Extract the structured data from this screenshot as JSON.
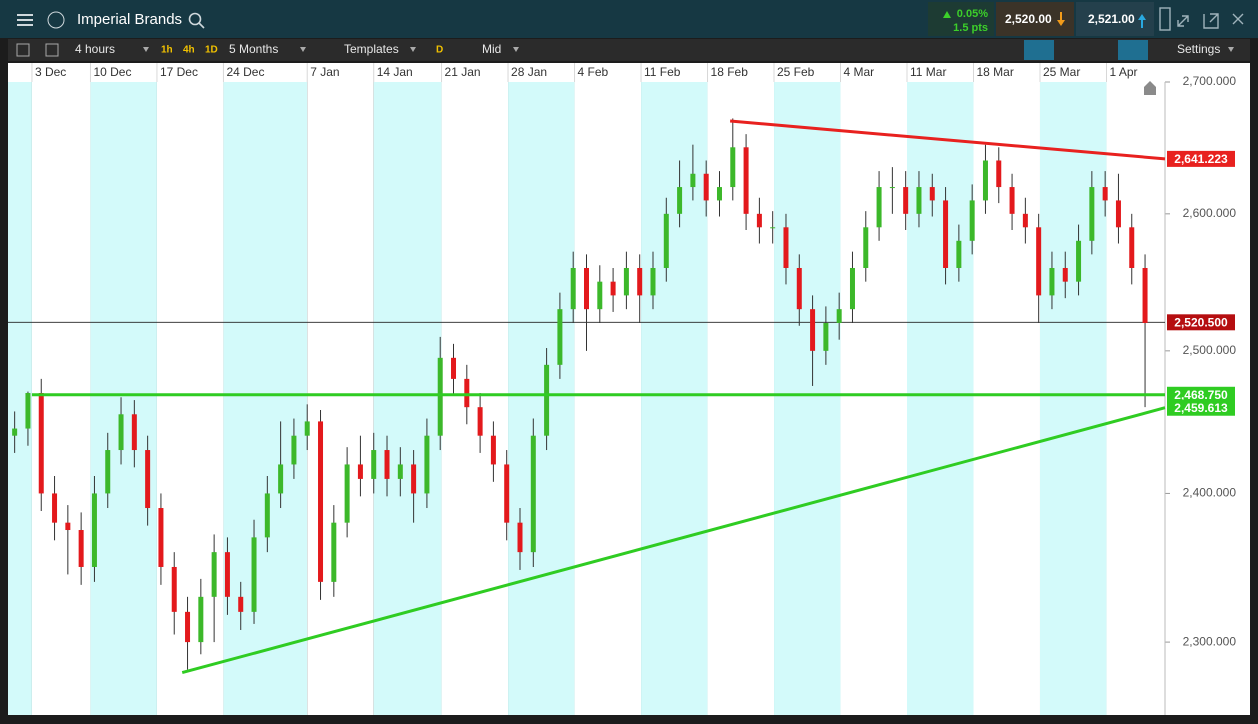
{
  "ui": {
    "title": "Imperial Brands",
    "change_percent": "0.05%",
    "change_points": "1.5 pts",
    "sell": "2,520.00",
    "buy": "2,521.00",
    "toolbar": {
      "interval": "4 hours",
      "presets": [
        "1h",
        "4h",
        "1D"
      ],
      "range": "5 Months",
      "templates": "Templates",
      "d": "D",
      "price": "Mid",
      "settings": "Settings"
    }
  },
  "chart_data": {
    "type": "candlestick",
    "log": true,
    "up_color": "#3cb82a",
    "down_color": "#e3191c",
    "xlim": [
      0,
      87
    ],
    "ylim": [
      2252.5,
      2700
    ],
    "xticks": [
      {
        "value": 1.8,
        "label": "3 Dec"
      },
      {
        "value": 6.2,
        "label": "10 Dec"
      },
      {
        "value": 11.2,
        "label": "17 Dec"
      },
      {
        "value": 16.2,
        "label": "24 Dec"
      },
      {
        "value": 22.5,
        "label": "7 Jan"
      },
      {
        "value": 27.5,
        "label": "14 Jan"
      },
      {
        "value": 32.6,
        "label": "21 Jan"
      },
      {
        "value": 37.6,
        "label": "28 Jan"
      },
      {
        "value": 42.6,
        "label": "4 Feb"
      },
      {
        "value": 47.6,
        "label": "11 Feb"
      },
      {
        "value": 52.6,
        "label": "18 Feb"
      },
      {
        "value": 57.6,
        "label": "25 Feb"
      },
      {
        "value": 62.6,
        "label": "4 Mar"
      },
      {
        "value": 67.6,
        "label": "11 Mar"
      },
      {
        "value": 72.6,
        "label": "18 Mar"
      },
      {
        "value": 77.6,
        "label": "25 Mar"
      },
      {
        "value": 82.6,
        "label": "1 Apr"
      }
    ],
    "yticks": [
      {
        "value": 2300,
        "label": "2,300.000"
      },
      {
        "value": 2400,
        "label": "2,400.000"
      },
      {
        "value": 2500,
        "label": "2,500.000"
      },
      {
        "value": 2600,
        "label": "2,600.000"
      },
      {
        "value": 2700,
        "label": "2,700.000"
      }
    ],
    "x": [
      0.5,
      1.5,
      2.5,
      3.5,
      4.5,
      5.5,
      6.5,
      7.5,
      8.5,
      9.5,
      10.5,
      11.5,
      12.5,
      13.5,
      14.5,
      15.5,
      16.5,
      17.5,
      18.5,
      19.5,
      20.5,
      21.5,
      22.5,
      23.5,
      24.5,
      25.5,
      26.5,
      27.5,
      28.5,
      29.5,
      30.5,
      31.5,
      32.5,
      33.5,
      34.5,
      35.5,
      36.5,
      37.5,
      38.5,
      39.5,
      40.5,
      41.5,
      42.5,
      43.5,
      44.5,
      45.5,
      46.5,
      47.5,
      48.5,
      49.5,
      50.5,
      51.5,
      52.5,
      53.5,
      54.5,
      55.5,
      56.5,
      57.5,
      58.5,
      59.5,
      60.5,
      61.5,
      62.5,
      63.5,
      64.5,
      65.5,
      66.5,
      67.5,
      68.5,
      69.5,
      70.5,
      71.5,
      72.5,
      73.5,
      74.5,
      75.5,
      76.5,
      77.5,
      78.5,
      79.5,
      80.5,
      81.5,
      82.5,
      83.5,
      84.5,
      85.5
    ],
    "open": [
      2440,
      2445,
      2470,
      2400,
      2380,
      2375,
      2350,
      2400,
      2430,
      2455,
      2430,
      2390,
      2350,
      2320,
      2300,
      2330,
      2360,
      2330,
      2320,
      2370,
      2400,
      2420,
      2440,
      2450,
      2340,
      2380,
      2420,
      2410,
      2430,
      2410,
      2420,
      2400,
      2440,
      2495,
      2480,
      2460,
      2440,
      2420,
      2380,
      2360,
      2440,
      2490,
      2530,
      2560,
      2530,
      2550,
      2540,
      2560,
      2540,
      2560,
      2600,
      2620,
      2630,
      2610,
      2620,
      2650,
      2600,
      2590,
      2590,
      2560,
      2530,
      2500,
      2520,
      2530,
      2560,
      2590,
      2620,
      2620,
      2600,
      2620,
      2610,
      2560,
      2580,
      2610,
      2640,
      2620,
      2600,
      2590,
      2540,
      2560,
      2550,
      2580,
      2620,
      2610,
      2590,
      2560
    ],
    "high": [
      2457,
      2471,
      2480,
      2412,
      2392,
      2387,
      2412,
      2442,
      2467,
      2465,
      2440,
      2400,
      2360,
      2330,
      2342,
      2372,
      2370,
      2340,
      2382,
      2412,
      2450,
      2452,
      2462,
      2458,
      2392,
      2432,
      2440,
      2442,
      2440,
      2432,
      2430,
      2452,
      2510,
      2505,
      2490,
      2470,
      2450,
      2430,
      2390,
      2452,
      2502,
      2542,
      2572,
      2570,
      2562,
      2560,
      2572,
      2570,
      2572,
      2612,
      2640,
      2652,
      2640,
      2632,
      2672,
      2660,
      2612,
      2602,
      2600,
      2570,
      2540,
      2532,
      2542,
      2572,
      2602,
      2632,
      2635,
      2632,
      2632,
      2630,
      2620,
      2592,
      2622,
      2652,
      2650,
      2630,
      2612,
      2600,
      2572,
      2572,
      2592,
      2632,
      2632,
      2630,
      2600,
      2570
    ],
    "low": [
      2428,
      2433,
      2388,
      2368,
      2345,
      2338,
      2340,
      2390,
      2420,
      2418,
      2378,
      2338,
      2305,
      2282,
      2292,
      2300,
      2318,
      2308,
      2312,
      2360,
      2390,
      2410,
      2430,
      2328,
      2330,
      2370,
      2398,
      2400,
      2398,
      2398,
      2380,
      2390,
      2430,
      2468,
      2448,
      2428,
      2408,
      2368,
      2348,
      2350,
      2430,
      2480,
      2520,
      2500,
      2520,
      2528,
      2530,
      2520,
      2530,
      2550,
      2590,
      2610,
      2598,
      2598,
      2610,
      2588,
      2578,
      2578,
      2548,
      2518,
      2475,
      2490,
      2508,
      2520,
      2550,
      2580,
      2600,
      2588,
      2590,
      2598,
      2548,
      2550,
      2570,
      2600,
      2608,
      2588,
      2578,
      2520,
      2530,
      2538,
      2540,
      2570,
      2598,
      2578,
      2548,
      2460
    ],
    "close": [
      2445,
      2470,
      2400,
      2380,
      2375,
      2350,
      2400,
      2430,
      2455,
      2430,
      2390,
      2350,
      2320,
      2300,
      2330,
      2360,
      2330,
      2320,
      2370,
      2400,
      2420,
      2440,
      2450,
      2340,
      2380,
      2420,
      2410,
      2430,
      2410,
      2420,
      2400,
      2440,
      2495,
      2480,
      2460,
      2440,
      2420,
      2380,
      2360,
      2440,
      2490,
      2530,
      2560,
      2530,
      2550,
      2540,
      2560,
      2540,
      2560,
      2600,
      2620,
      2630,
      2610,
      2620,
      2650,
      2600,
      2590,
      2590,
      2560,
      2530,
      2500,
      2520,
      2530,
      2560,
      2590,
      2620,
      2620,
      2600,
      2620,
      2610,
      2560,
      2580,
      2610,
      2640,
      2620,
      2600,
      2590,
      2540,
      2560,
      2550,
      2580,
      2620,
      2610,
      2590,
      2560,
      2520
    ],
    "lines": [
      {
        "color": "#e8211f",
        "x": [
          54.3,
          87
        ],
        "y": [
          2670,
          2641.223
        ]
      },
      {
        "color": "#2fcc22",
        "x": [
          1.8,
          87
        ],
        "y": [
          2468.75,
          2468.75
        ]
      },
      {
        "color": "#2fcc22",
        "x": [
          13.1,
          87
        ],
        "y": [
          2280,
          2459.613
        ]
      }
    ],
    "price_line": {
      "value": 2520.5,
      "label": "2,520.500",
      "color": "#b50e10"
    },
    "price_labels": [
      {
        "value": 2641.223,
        "label": "2,641.223",
        "color": "#e8211f"
      },
      {
        "value": 2468.75,
        "label": "2,468.750",
        "color": "#2fcc22"
      },
      {
        "value": 2459.613,
        "label": "2,459.613",
        "color": "#2fcc22"
      }
    ]
  }
}
